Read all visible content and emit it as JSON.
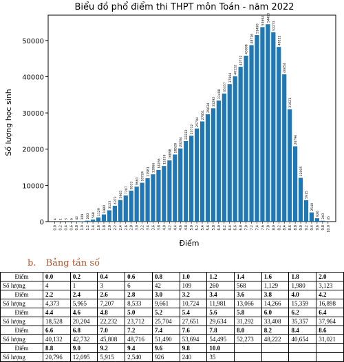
{
  "chart_data": {
    "type": "bar",
    "title": "Biểu đồ phổ điểm thi THPT môn Toán - năm 2022",
    "xlabel": "Điểm",
    "ylabel": "Số lượng học sinh",
    "ylim": [
      0,
      57000
    ],
    "yticks": [
      0,
      10000,
      20000,
      30000,
      40000,
      50000
    ],
    "grid": false,
    "bar_color": "#1f77b4",
    "categories": [
      "0.0",
      "0.2",
      "0.4",
      "0.6",
      "0.8",
      "1.0",
      "1.2",
      "1.4",
      "1.6",
      "1.8",
      "2.0",
      "2.2",
      "2.4",
      "2.6",
      "2.8",
      "3.0",
      "3.2",
      "3.4",
      "3.6",
      "3.8",
      "4.0",
      "4.2",
      "4.4",
      "4.6",
      "4.8",
      "5.0",
      "5.2",
      "5.4",
      "5.6",
      "5.8",
      "6.0",
      "6.2",
      "6.4",
      "6.6",
      "6.8",
      "7.0",
      "7.2",
      "7.4",
      "7.6",
      "7.8",
      "8.0",
      "8.2",
      "8.4",
      "8.6",
      "8.8",
      "9.0",
      "9.2",
      "9.4",
      "9.6",
      "9.8",
      "10.0"
    ],
    "values": [
      4,
      1,
      3,
      6,
      42,
      109,
      260,
      568,
      1129,
      1980,
      3123,
      4373,
      5965,
      7207,
      8533,
      9661,
      10724,
      11981,
      13066,
      14266,
      15359,
      16898,
      18528,
      20204,
      22232,
      23712,
      25704,
      27651,
      29634,
      31292,
      33408,
      35357,
      37964,
      40132,
      42732,
      45808,
      48716,
      51490,
      53694,
      54495,
      52273,
      48222,
      40654,
      31021,
      20796,
      12095,
      5915,
      2540,
      926,
      240,
      35
    ],
    "bar_labels": [
      "4",
      "1",
      "3",
      "6",
      "42",
      "109",
      "260",
      "568",
      "1129",
      "1980",
      "3123",
      "4373",
      "5965",
      "7207",
      "8533",
      "9661",
      "10724",
      "11981",
      "13066",
      "14266",
      "15359",
      "16898",
      "18528",
      "20204",
      "22232",
      "23712",
      "25704",
      "27651",
      "29634",
      "31292",
      "33408",
      "35357",
      "37964",
      "40132",
      "42732",
      "45808",
      "48716",
      "51490",
      "53694",
      "54495",
      "52273",
      "48222",
      "40654",
      "31021",
      "20796",
      "12095",
      "5915",
      "2540",
      "926",
      "240",
      "35"
    ]
  },
  "section": {
    "label": "b.",
    "title": "Bảng tần số"
  },
  "table": {
    "score_header": "Điểm",
    "count_header": "Số lượng",
    "rows": [
      {
        "scores": [
          "0.0",
          "0.2",
          "0.4",
          "0.6",
          "0.8",
          "1.0",
          "1.2",
          "1.4",
          "1.6",
          "1.8",
          "2.0"
        ],
        "counts": [
          "4",
          "1",
          "3",
          "6",
          "42",
          "109",
          "260",
          "568",
          "1,129",
          "1,980",
          "3,123"
        ]
      },
      {
        "scores": [
          "2.2",
          "2.4",
          "2.6",
          "2.8",
          "3.0",
          "3.2",
          "3.4",
          "3.6",
          "3.8",
          "4.0",
          "4.2"
        ],
        "counts": [
          "4,373",
          "5,965",
          "7,207",
          "8,533",
          "9,661",
          "10,724",
          "11,981",
          "13,066",
          "14,266",
          "15,359",
          "16,898"
        ]
      },
      {
        "scores": [
          "4.4",
          "4.6",
          "4.8",
          "5.0",
          "5.2",
          "5.4",
          "5.6",
          "5.8",
          "6.0",
          "6.2",
          "6.4"
        ],
        "counts": [
          "18,528",
          "20,204",
          "22,232",
          "23,712",
          "25,704",
          "27,651",
          "29,634",
          "31,292",
          "33,408",
          "35,357",
          "37,964"
        ]
      },
      {
        "scores": [
          "6.6",
          "6.8",
          "7.0",
          "7.2",
          "7.4",
          "7.6",
          "7.8",
          "8.0",
          "8.2",
          "8.4",
          "8.6"
        ],
        "counts": [
          "40,132",
          "42,732",
          "45,808",
          "48,716",
          "51,490",
          "53,694",
          "54,495",
          "52,273",
          "48,222",
          "40,654",
          "31,021"
        ]
      },
      {
        "scores": [
          "8.8",
          "9.0",
          "9.2",
          "9.4",
          "9.6",
          "9.8",
          "10.0",
          "",
          "",
          "",
          ""
        ],
        "counts": [
          "20,796",
          "12,095",
          "5,915",
          "2,540",
          "926",
          "240",
          "35",
          "",
          "",
          "",
          ""
        ]
      }
    ]
  }
}
